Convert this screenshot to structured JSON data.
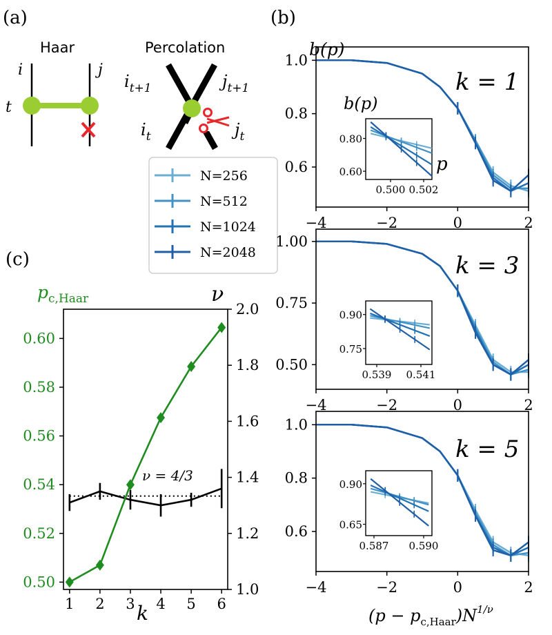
{
  "panel_labels": {
    "a": "(a)",
    "b": "(b)",
    "c": "(c)"
  },
  "diagram": {
    "haar_title": "Haar",
    "perc_title": "Percolation",
    "haar_i": "i",
    "haar_j": "j",
    "haar_t": "t",
    "perc_i_next": "i",
    "perc_i_next_sub": "t+1",
    "perc_j_next": "j",
    "perc_j_next_sub": "t+1",
    "perc_i_cur": "i",
    "perc_i_cur_sub": "t",
    "perc_j_cur": "j",
    "perc_j_cur_sub": "t",
    "mark_icon": "red-cross-icon",
    "cut_icon": "scissors-icon",
    "colors": {
      "node": "#9acd32",
      "bond": "#9acd32",
      "cross": "#e8262b",
      "scissors": "#e8262b"
    }
  },
  "legend": {
    "entries": [
      {
        "label": "N=256",
        "color": "#6aaed6"
      },
      {
        "label": "N=512",
        "color": "#4292c6"
      },
      {
        "label": "N=1024",
        "color": "#2171b5"
      },
      {
        "label": "N=2048",
        "color": "#1f5fa8"
      }
    ]
  },
  "panel_b": {
    "ylabel": "b(p)",
    "xlabel_main": "(p − p",
    "xlabel_sub": "c,Haar",
    "xlabel_tail": ")N",
    "xlabel_sup": "1/ν",
    "xticks": [
      "−4",
      "−2",
      "0",
      "2"
    ],
    "subplots": [
      {
        "k_label": "k = 1",
        "yticks": [
          "1.0",
          "0.8",
          "0.6"
        ],
        "inset": {
          "ylabel": "b(p)",
          "xlabel": "p",
          "yticks": [
            "0.80",
            "0.60"
          ],
          "xticks": [
            "0.500",
            "0.502"
          ]
        }
      },
      {
        "k_label": "k = 3",
        "yticks": [
          "1.00",
          "0.75",
          "0.50"
        ],
        "inset": {
          "ylabel": "",
          "xlabel": "",
          "yticks": [
            "0.90",
            "0.75"
          ],
          "xticks": [
            "0.539",
            "0.541"
          ]
        }
      },
      {
        "k_label": "k = 5",
        "yticks": [
          "1.0",
          "0.8",
          "0.6"
        ],
        "inset": {
          "ylabel": "",
          "xlabel": "",
          "yticks": [
            "0.90",
            "0.65"
          ],
          "xticks": [
            "0.587",
            "0.590"
          ]
        }
      }
    ]
  },
  "panel_c": {
    "left_label_main": "p",
    "left_label_sub": "c,Haar",
    "right_label": "ν",
    "xlabel": "k",
    "annotation": "ν = 4/3",
    "yticks_left": [
      "0.60",
      "0.58",
      "0.56",
      "0.54",
      "0.52",
      "0.50"
    ],
    "yticks_right": [
      "2.0",
      "1.8",
      "1.6",
      "1.4",
      "1.2",
      "1.0"
    ],
    "xticks": [
      "1",
      "2",
      "3",
      "4",
      "5",
      "6"
    ],
    "colors": {
      "pc": "#1e8c1e",
      "nu": "#000000"
    }
  },
  "chart_data": [
    {
      "type": "line",
      "title": "k = 1",
      "xlabel": "(p − p_c,Haar) N^(1/ν)",
      "ylabel": "b(p)",
      "xlim": [
        -4,
        2
      ],
      "ylim": [
        0.45,
        1.05
      ],
      "series": [
        {
          "name": "N=256",
          "x": [
            -4,
            -3,
            -2,
            -1,
            -0.5,
            0,
            0.5,
            1,
            1.5,
            2
          ],
          "values": [
            1.0,
            1.0,
            0.99,
            0.95,
            0.9,
            0.82,
            0.7,
            0.58,
            0.53,
            0.51
          ]
        },
        {
          "name": "N=512",
          "x": [
            -4,
            -3,
            -2,
            -1,
            -0.5,
            0,
            0.5,
            1,
            1.5,
            2
          ],
          "values": [
            1.0,
            1.0,
            0.99,
            0.95,
            0.9,
            0.82,
            0.7,
            0.57,
            0.52,
            0.52
          ]
        },
        {
          "name": "N=1024",
          "x": [
            -4,
            -3,
            -2,
            -1,
            -0.5,
            0,
            0.5,
            1,
            1.5,
            2
          ],
          "values": [
            1.0,
            1.0,
            0.99,
            0.95,
            0.9,
            0.82,
            0.69,
            0.56,
            0.51,
            0.54
          ]
        },
        {
          "name": "N=2048",
          "x": [
            -4,
            -3,
            -2,
            -1,
            -0.5,
            0,
            0.5,
            1,
            1.5,
            2
          ],
          "values": [
            1.0,
            1.0,
            0.99,
            0.95,
            0.9,
            0.82,
            0.69,
            0.55,
            0.51,
            0.57
          ]
        }
      ]
    },
    {
      "type": "line",
      "title": "k = 3",
      "xlim": [
        -4,
        2
      ],
      "ylim": [
        0.4,
        1.05
      ],
      "series": [
        {
          "name": "N=256",
          "x": [
            -4,
            -3,
            -2,
            -1,
            -0.5,
            0,
            0.5,
            1,
            1.5,
            2
          ],
          "values": [
            1.0,
            1.0,
            0.99,
            0.95,
            0.9,
            0.8,
            0.66,
            0.52,
            0.47,
            0.47
          ]
        },
        {
          "name": "N=512",
          "x": [
            -4,
            -3,
            -2,
            -1,
            -0.5,
            0,
            0.5,
            1,
            1.5,
            2
          ],
          "values": [
            1.0,
            1.0,
            0.99,
            0.95,
            0.9,
            0.8,
            0.65,
            0.51,
            0.46,
            0.48
          ]
        },
        {
          "name": "N=1024",
          "x": [
            -4,
            -3,
            -2,
            -1,
            -0.5,
            0,
            0.5,
            1,
            1.5,
            2
          ],
          "values": [
            1.0,
            1.0,
            0.99,
            0.95,
            0.9,
            0.8,
            0.64,
            0.5,
            0.46,
            0.5
          ]
        },
        {
          "name": "N=2048",
          "x": [
            -4,
            -3,
            -2,
            -1,
            -0.5,
            0,
            0.5,
            1,
            1.5,
            2
          ],
          "values": [
            1.0,
            1.0,
            0.99,
            0.95,
            0.9,
            0.8,
            0.63,
            0.5,
            0.46,
            0.52
          ]
        }
      ]
    },
    {
      "type": "line",
      "title": "k = 5",
      "xlim": [
        -4,
        2
      ],
      "ylim": [
        0.45,
        1.05
      ],
      "series": [
        {
          "name": "N=256",
          "x": [
            -4,
            -3,
            -2,
            -1,
            -0.5,
            0,
            0.5,
            1,
            1.5,
            2
          ],
          "values": [
            1.0,
            1.0,
            0.99,
            0.95,
            0.9,
            0.81,
            0.68,
            0.56,
            0.52,
            0.51
          ]
        },
        {
          "name": "N=512",
          "x": [
            -4,
            -3,
            -2,
            -1,
            -0.5,
            0,
            0.5,
            1,
            1.5,
            2
          ],
          "values": [
            1.0,
            1.0,
            0.99,
            0.95,
            0.9,
            0.81,
            0.67,
            0.55,
            0.51,
            0.52
          ]
        },
        {
          "name": "N=1024",
          "x": [
            -4,
            -3,
            -2,
            -1,
            -0.5,
            0,
            0.5,
            1,
            1.5,
            2
          ],
          "values": [
            1.0,
            1.0,
            0.99,
            0.95,
            0.9,
            0.81,
            0.66,
            0.54,
            0.51,
            0.54
          ]
        },
        {
          "name": "N=2048",
          "x": [
            -4,
            -3,
            -2,
            -1,
            -0.5,
            0,
            0.5,
            1,
            1.5,
            2
          ],
          "values": [
            1.0,
            1.0,
            0.99,
            0.95,
            0.9,
            0.81,
            0.66,
            0.53,
            0.51,
            0.56
          ]
        }
      ]
    },
    {
      "type": "line",
      "title": "inset k = 1",
      "xlabel": "p",
      "ylabel": "b(p)",
      "xlim": [
        0.4985,
        0.5025
      ],
      "ylim": [
        0.55,
        0.92
      ],
      "series": [
        {
          "name": "N=256",
          "x": [
            0.4988,
            0.5025
          ],
          "values": [
            0.83,
            0.74
          ]
        },
        {
          "name": "N=512",
          "x": [
            0.4988,
            0.5025
          ],
          "values": [
            0.85,
            0.71
          ]
        },
        {
          "name": "N=1024",
          "x": [
            0.4988,
            0.5025
          ],
          "values": [
            0.87,
            0.64
          ]
        },
        {
          "name": "N=2048",
          "x": [
            0.4988,
            0.5025
          ],
          "values": [
            0.9,
            0.57
          ]
        }
      ]
    },
    {
      "type": "line",
      "title": "inset k = 3",
      "xlim": [
        0.5385,
        0.5415
      ],
      "ylim": [
        0.68,
        0.96
      ],
      "series": [
        {
          "name": "N=256",
          "x": [
            0.5387,
            0.5414
          ],
          "values": [
            0.885,
            0.855
          ]
        },
        {
          "name": "N=512",
          "x": [
            0.5387,
            0.5414
          ],
          "values": [
            0.895,
            0.84
          ]
        },
        {
          "name": "N=1024",
          "x": [
            0.5387,
            0.5414
          ],
          "values": [
            0.905,
            0.805
          ]
        },
        {
          "name": "N=2048",
          "x": [
            0.5387,
            0.5414
          ],
          "values": [
            0.925,
            0.745
          ]
        }
      ]
    },
    {
      "type": "line",
      "title": "inset k = 5",
      "xlim": [
        0.5865,
        0.5905
      ],
      "ylim": [
        0.58,
        0.98
      ],
      "series": [
        {
          "name": "N=256",
          "x": [
            0.5868,
            0.5903
          ],
          "values": [
            0.85,
            0.78
          ]
        },
        {
          "name": "N=512",
          "x": [
            0.5868,
            0.5903
          ],
          "values": [
            0.87,
            0.77
          ]
        },
        {
          "name": "N=1024",
          "x": [
            0.5868,
            0.5903
          ],
          "values": [
            0.89,
            0.73
          ]
        },
        {
          "name": "N=2048",
          "x": [
            0.5868,
            0.5903
          ],
          "values": [
            0.93,
            0.64
          ]
        }
      ]
    },
    {
      "type": "line",
      "title": "(c)",
      "xlabel": "k",
      "ylabel": "p_c,Haar",
      "ylabel_right": "ν",
      "xlim": [
        0.8,
        6.2
      ],
      "ylim": [
        0.497,
        0.612
      ],
      "ylim_right": [
        1.0,
        2.0
      ],
      "categories": [
        1,
        2,
        3,
        4,
        5,
        6
      ],
      "series": [
        {
          "name": "p_c,Haar",
          "axis": "left",
          "values": [
            0.5,
            0.507,
            0.54,
            0.5675,
            0.5885,
            0.6045
          ]
        },
        {
          "name": "ν",
          "axis": "right",
          "values": [
            1.31,
            1.35,
            1.32,
            1.3,
            1.32,
            1.36
          ],
          "errors": [
            0.03,
            0.03,
            0.035,
            0.04,
            0.025,
            0.07
          ]
        },
        {
          "name": "ν = 4/3",
          "axis": "right",
          "values": [
            1.3333,
            1.3333,
            1.3333,
            1.3333,
            1.3333,
            1.3333
          ],
          "style": "dotted"
        }
      ]
    }
  ]
}
